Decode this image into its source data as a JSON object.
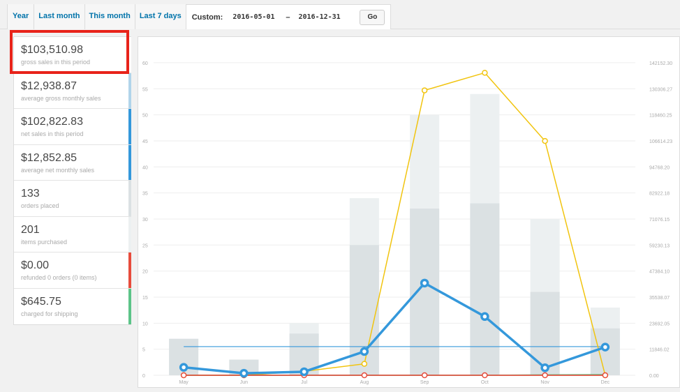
{
  "tabs": [
    "Year",
    "Last month",
    "This month",
    "Last 7 days"
  ],
  "custom": {
    "label": "Custom:",
    "start": "2016-05-01",
    "dash": "–",
    "end": "2016-12-31",
    "go": "Go"
  },
  "stats": [
    {
      "amount": "$103,510.98",
      "desc": "gross sales in this period",
      "color": "#ffffff"
    },
    {
      "amount": "$12,938.87",
      "desc": "average gross monthly sales",
      "color": "#b1d4ea"
    },
    {
      "amount": "$102,822.83",
      "desc": "net sales in this period",
      "color": "#3498db"
    },
    {
      "amount": "$12,852.85",
      "desc": "average net monthly sales",
      "color": "#3498db"
    },
    {
      "amount": "133",
      "desc": "orders placed",
      "color": "#dbe1e3"
    },
    {
      "amount": "201",
      "desc": "items purchased",
      "color": "#ecf0f1"
    },
    {
      "amount": "$0.00",
      "desc": "refunded 0 orders (0 items)",
      "color": "#e74c3c"
    },
    {
      "amount": "$645.75",
      "desc": "charged for shipping",
      "color": "#5cc488"
    }
  ],
  "chart_data": {
    "type": "bar",
    "categories": [
      "May",
      "Jun",
      "Jul",
      "Aug",
      "Sep",
      "Oct",
      "Nov",
      "Dec"
    ],
    "ylim": [
      0,
      62
    ],
    "y2lim": [
      0,
      146800
    ],
    "yticks": [
      0,
      5,
      10,
      15,
      20,
      25,
      30,
      35,
      40,
      45,
      50,
      55,
      60
    ],
    "y2ticks": [
      "0.00",
      "11846.02",
      "23692.05",
      "35538.07",
      "47384.10",
      "59230.13",
      "71076.15",
      "82922.18",
      "94768.20",
      "106614.23",
      "118460.25",
      "130306.27",
      "142152.30"
    ],
    "series": [
      {
        "values": [
          7,
          3,
          10,
          34,
          50,
          54,
          30,
          13
        ],
        "color": "#ecf0f1",
        "kind": "bar"
      },
      {
        "values": [
          7,
          3,
          8,
          25,
          32,
          33,
          16,
          9
        ],
        "color": "#dbe1e3",
        "kind": "bar"
      },
      {
        "values": [
          0,
          0,
          1800,
          5200,
          129500,
          137500,
          106500,
          0
        ],
        "color": "#f1c40f",
        "kind": "line"
      },
      {
        "values": [
          3600,
          900,
          1600,
          10800,
          41900,
          26700,
          3400,
          12800
        ],
        "color": "#3498db",
        "kind": "line"
      },
      {
        "values": [
          5.5,
          5.5,
          5.5,
          5.5,
          5.5,
          5.5,
          5.5,
          5.5
        ],
        "color": "#3498db",
        "kind": "avg"
      },
      {
        "values": [
          0,
          0,
          0,
          0,
          0,
          0,
          0,
          0
        ],
        "color": "#e74c3c",
        "kind": "line"
      },
      {
        "values": [
          0,
          0,
          0,
          0,
          0,
          0,
          200,
          300
        ],
        "color": "#5cc488",
        "kind": "line"
      }
    ]
  }
}
